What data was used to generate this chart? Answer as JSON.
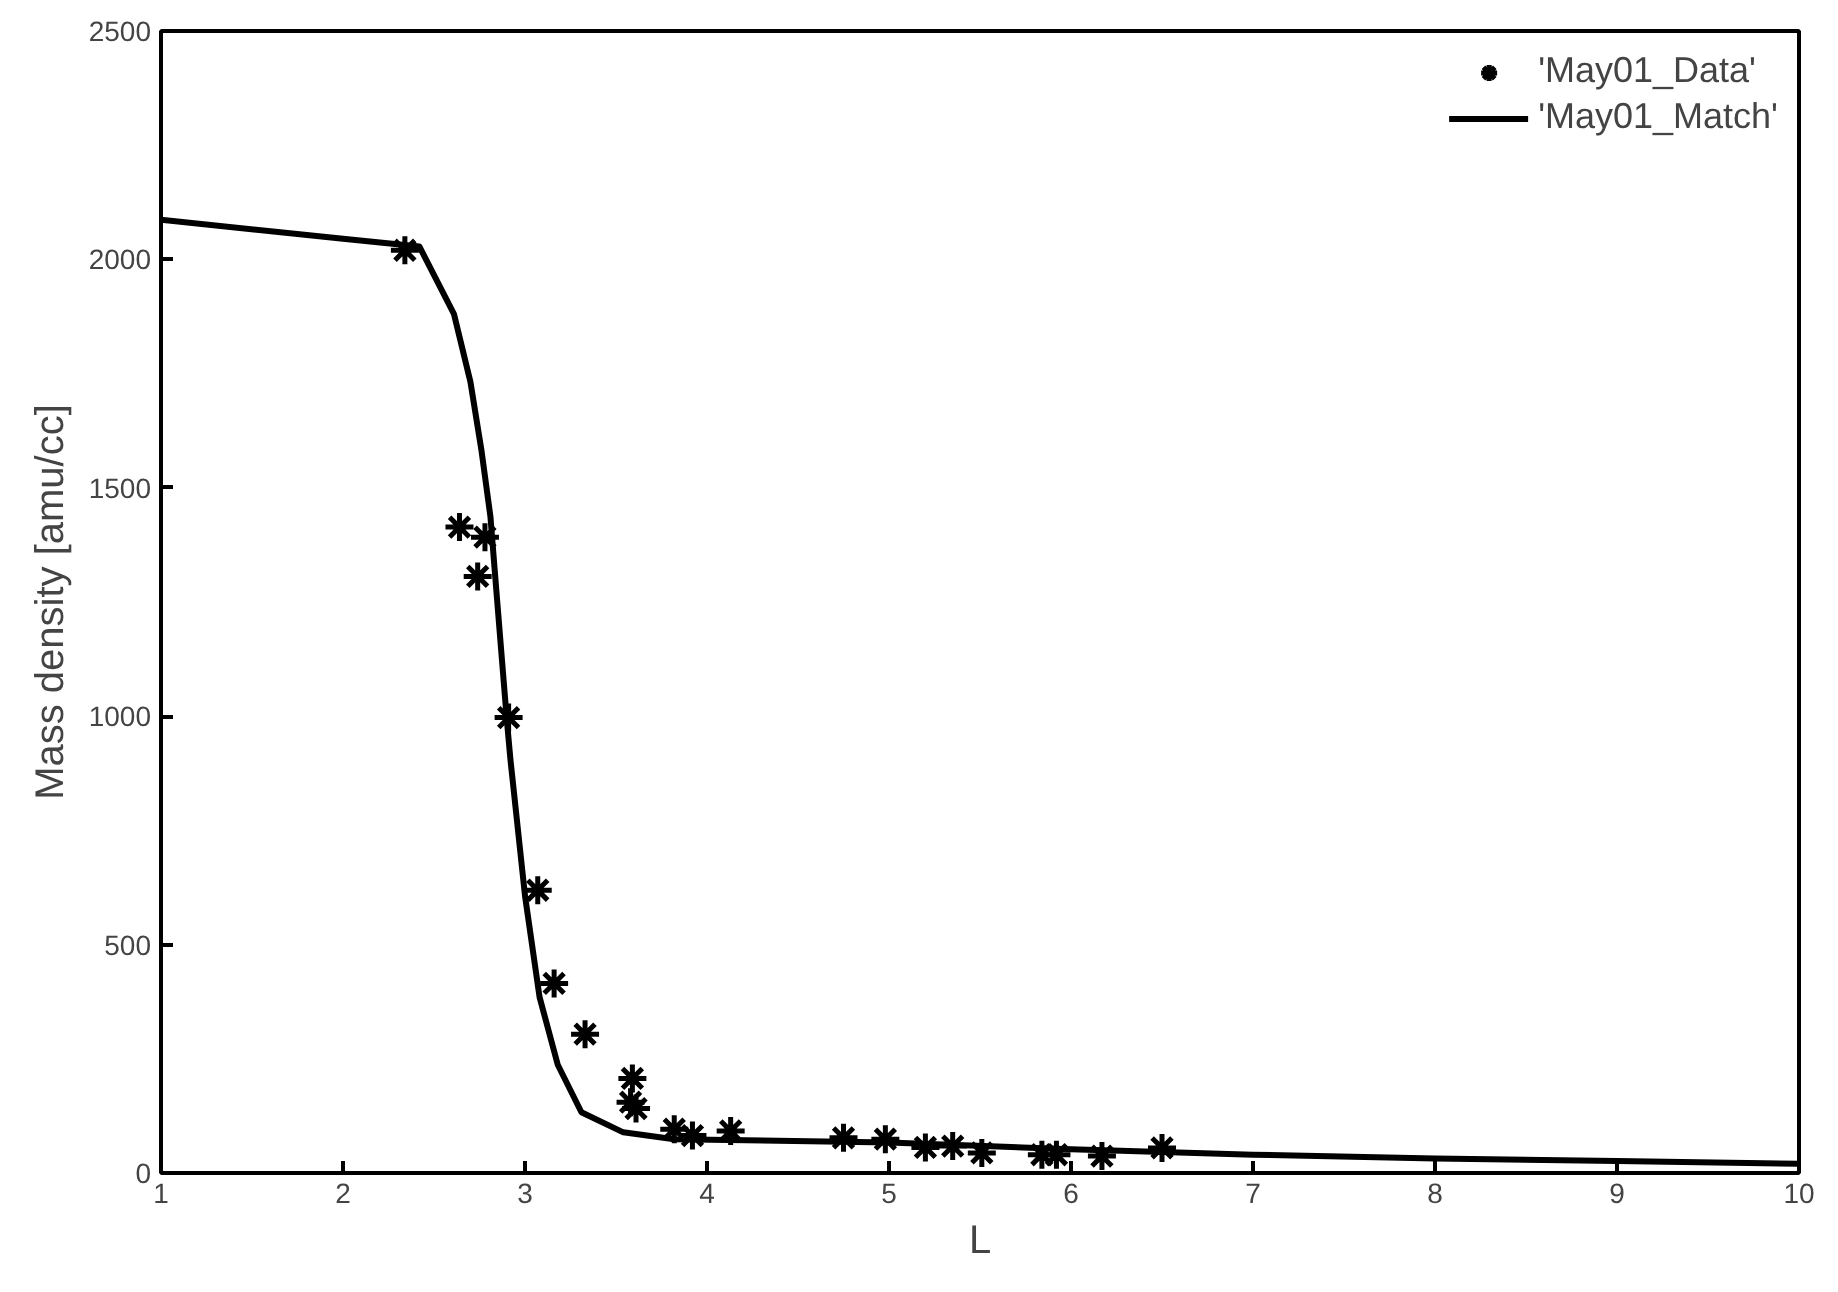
{
  "chart_data": {
    "type": "scatter",
    "xlabel": "L",
    "ylabel": "Mass density [amu/cc]",
    "xlim": [
      1,
      10
    ],
    "ylim": [
      0,
      2500
    ],
    "xticks": [
      1,
      2,
      3,
      4,
      5,
      6,
      7,
      8,
      9,
      10
    ],
    "yticks": [
      0,
      500,
      1000,
      1500,
      2000,
      2500
    ],
    "grid": false,
    "legend": "top right",
    "series": [
      {
        "name": "'May01_Data'",
        "marker": "cross",
        "color": "#000000",
        "x": [
          2.34,
          2.64,
          2.78,
          2.74,
          2.91,
          3.07,
          3.16,
          3.33,
          3.59,
          3.58,
          3.61,
          3.82,
          3.92,
          4.13,
          4.75,
          4.98,
          5.2,
          5.35,
          5.51,
          5.84,
          5.92,
          6.17,
          6.5
        ],
        "values": [
          2020,
          1414,
          1392,
          1306,
          997,
          619,
          415,
          304,
          207,
          155,
          141,
          96,
          82,
          92,
          77,
          74,
          56,
          59,
          44,
          40,
          40,
          37,
          55
        ]
      },
      {
        "name": "'May01_Match'",
        "type": "line",
        "line_style": "solid",
        "color": "#000000",
        "x": [
          1,
          2,
          2.42,
          2.61,
          2.7,
          2.76,
          2.81,
          2.84,
          2.87,
          2.9,
          2.92,
          3.0,
          3.08,
          3.18,
          3.31,
          3.54,
          3.82,
          5,
          6,
          7,
          8,
          9,
          10
        ],
        "values": [
          2087,
          2045,
          2028,
          1880,
          1732,
          1584,
          1437,
          1288,
          1140,
          993,
          905,
          607,
          385,
          237,
          133,
          89,
          74,
          67,
          52,
          40,
          32,
          26,
          20
        ]
      }
    ]
  }
}
